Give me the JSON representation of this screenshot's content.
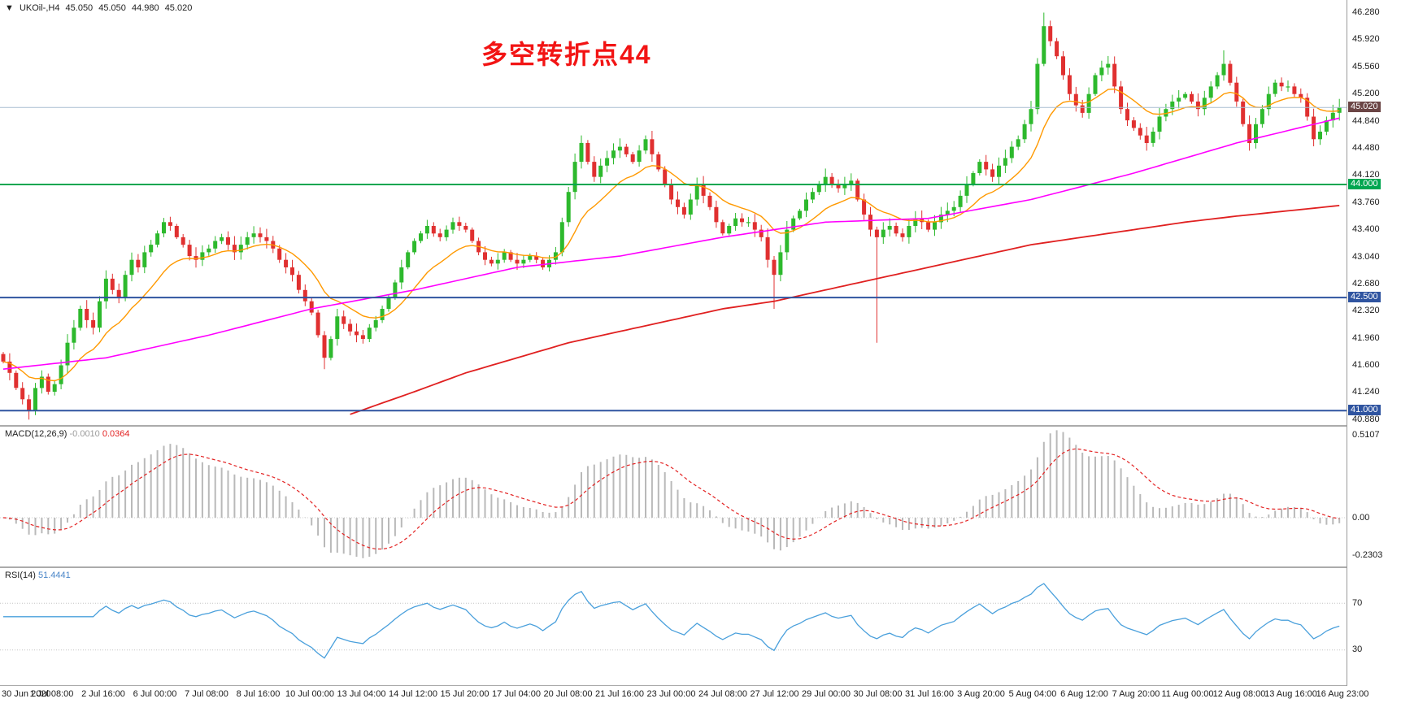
{
  "window": {
    "ohlc_bar": {
      "collapse_icon": "▼",
      "symbol_period": "UKOil-,H4",
      "open": "45.050",
      "high": "45.050",
      "low": "44.980",
      "close": "45.020"
    }
  },
  "annotation": {
    "text": "多空转折点44",
    "color": "#f21414"
  },
  "colors": {
    "background": "#ffffff",
    "bull": "#2db92d",
    "bear": "#e03030",
    "ma_fast": "#ff9900",
    "ma_mid": "#ff00ff",
    "ma_slow": "#e02020",
    "separator": "#ababab",
    "axis_text": "#1a1a1a",
    "macd_hist": "#b9b9b9",
    "macd_signal": "#e32222",
    "rsi_line": "#4aa0dc",
    "rsi_level_line": "#c4c4c4"
  },
  "chart_data": {
    "type": "candlestick",
    "symbol": "UKOil-",
    "timeframe": "H4",
    "bars_count": 209,
    "ylim": [
      40.808,
      46.447
    ],
    "price_ticks": [
      "46.280",
      "45.920",
      "45.560",
      "45.200",
      "44.840",
      "44.480",
      "44.120",
      "43.760",
      "43.400",
      "43.040",
      "42.680",
      "42.320",
      "41.960",
      "41.600",
      "41.240",
      "40.880"
    ],
    "time_labels": [
      "30 Jun 2020",
      "1 Jul 08:00",
      "2 Jul 16:00",
      "6 Jul 00:00",
      "7 Jul 08:00",
      "8 Jul 16:00",
      "10 Jul 00:00",
      "13 Jul 04:00",
      "14 Jul 12:00",
      "15 Jul 20:00",
      "17 Jul 04:00",
      "20 Jul 08:00",
      "21 Jul 16:00",
      "23 Jul 00:00",
      "24 Jul 08:00",
      "27 Jul 12:00",
      "29 Jul 00:00",
      "30 Jul 08:00",
      "31 Jul 16:00",
      "3 Aug 20:00",
      "5 Aug 04:00",
      "6 Aug 12:00",
      "7 Aug 20:00",
      "11 Aug 00:00",
      "12 Aug 08:00",
      "13 Aug 16:00",
      "16 Aug 23:00"
    ],
    "levels": [
      {
        "price": 45.02,
        "label": "45.020",
        "role": "current-price-line",
        "line_color": "#a9bdd1",
        "tag_bg": "#6b4545",
        "width": 1
      },
      {
        "price": 44.0,
        "label": "44.000",
        "role": "horizontal-line",
        "line_color": "#00a650",
        "tag_bg": "#00a650",
        "width": 2
      },
      {
        "price": 42.5,
        "label": "42.500",
        "role": "horizontal-line",
        "line_color": "#2f54a0",
        "tag_bg": "#2f54a0",
        "width": 2
      },
      {
        "price": 41.0,
        "label": "41.000",
        "role": "horizontal-line",
        "line_color": "#2f54a0",
        "tag_bg": "#2f54a0",
        "width": 2
      }
    ],
    "first_open": 41.75,
    "closes": [
      41.65,
      41.5,
      41.3,
      41.15,
      41.0,
      41.3,
      41.45,
      41.25,
      41.35,
      41.6,
      41.9,
      42.1,
      42.35,
      42.2,
      42.1,
      42.45,
      42.75,
      42.6,
      42.5,
      42.8,
      43.0,
      42.9,
      43.1,
      43.2,
      43.35,
      43.5,
      43.45,
      43.3,
      43.2,
      43.05,
      43.0,
      43.1,
      43.15,
      43.25,
      43.3,
      43.2,
      43.1,
      43.2,
      43.3,
      43.35,
      43.3,
      43.25,
      43.15,
      43.0,
      42.9,
      42.8,
      42.6,
      42.45,
      42.3,
      42.0,
      41.7,
      41.95,
      42.25,
      42.15,
      42.05,
      42.0,
      41.95,
      42.1,
      42.2,
      42.35,
      42.5,
      42.7,
      42.9,
      43.1,
      43.25,
      43.35,
      43.45,
      43.35,
      43.3,
      43.4,
      43.5,
      43.45,
      43.4,
      43.25,
      43.1,
      43.0,
      42.95,
      43.0,
      43.1,
      43.0,
      42.95,
      43.0,
      43.05,
      43.0,
      42.9,
      43.0,
      43.1,
      43.5,
      43.9,
      44.3,
      44.55,
      44.3,
      44.1,
      44.25,
      44.35,
      44.45,
      44.5,
      44.4,
      44.3,
      44.45,
      44.6,
      44.4,
      44.2,
      44.0,
      43.8,
      43.7,
      43.6,
      43.8,
      44.0,
      43.85,
      43.7,
      43.5,
      43.35,
      43.45,
      43.55,
      43.5,
      43.5,
      43.4,
      43.3,
      43.0,
      42.8,
      43.1,
      43.4,
      43.55,
      43.65,
      43.8,
      43.9,
      44.0,
      44.1,
      44.0,
      43.95,
      44.0,
      44.05,
      43.8,
      43.6,
      43.4,
      43.3,
      43.4,
      43.45,
      43.35,
      43.3,
      43.45,
      43.55,
      43.5,
      43.4,
      43.5,
      43.6,
      43.65,
      43.7,
      43.85,
      44.0,
      44.15,
      44.3,
      44.2,
      44.1,
      44.25,
      44.35,
      44.5,
      44.6,
      44.8,
      45.0,
      45.6,
      46.1,
      45.9,
      45.7,
      45.45,
      45.2,
      45.05,
      44.95,
      45.2,
      45.45,
      45.55,
      45.6,
      45.3,
      45.0,
      44.85,
      44.75,
      44.65,
      44.55,
      44.7,
      44.9,
      45.0,
      45.1,
      45.15,
      45.2,
      45.1,
      45.0,
      45.15,
      45.3,
      45.45,
      45.6,
      45.35,
      45.1,
      44.8,
      44.55,
      44.8,
      45.0,
      45.2,
      45.35,
      45.3,
      45.3,
      45.2,
      45.15,
      44.9,
      44.6,
      44.7,
      44.85,
      44.95,
      45.02
    ],
    "wick_spikes": {
      "4": {
        "low": 40.88
      },
      "50": {
        "low": 41.55
      },
      "120": {
        "low": 42.35
      },
      "136": {
        "low": 41.9
      },
      "162": {
        "high": 46.28
      },
      "190": {
        "high": 45.78
      }
    },
    "moving_averages": {
      "fast": {
        "type": "ema",
        "period": 13,
        "color": "#ff9900"
      },
      "mid": {
        "color": "#ff00ff",
        "path": [
          [
            0,
            41.55
          ],
          [
            16,
            41.7
          ],
          [
            32,
            42.0
          ],
          [
            48,
            42.35
          ],
          [
            64,
            42.6
          ],
          [
            80,
            42.9
          ],
          [
            96,
            43.05
          ],
          [
            112,
            43.3
          ],
          [
            128,
            43.5
          ],
          [
            144,
            43.55
          ],
          [
            160,
            43.8
          ],
          [
            176,
            44.15
          ],
          [
            192,
            44.55
          ],
          [
            208,
            44.88
          ]
        ]
      },
      "slow": {
        "color": "#e02020",
        "path": [
          [
            54,
            40.95
          ],
          [
            64,
            41.25
          ],
          [
            72,
            41.5
          ],
          [
            80,
            41.7
          ],
          [
            88,
            41.9
          ],
          [
            96,
            42.05
          ],
          [
            104,
            42.2
          ],
          [
            112,
            42.35
          ],
          [
            120,
            42.45
          ],
          [
            128,
            42.6
          ],
          [
            136,
            42.75
          ],
          [
            144,
            42.9
          ],
          [
            152,
            43.05
          ],
          [
            160,
            43.2
          ],
          [
            168,
            43.3
          ],
          [
            176,
            43.4
          ],
          [
            184,
            43.5
          ],
          [
            192,
            43.58
          ],
          [
            200,
            43.65
          ],
          [
            208,
            43.72
          ]
        ]
      }
    },
    "indicators": {
      "macd": {
        "label": "MACD(12,26,9)",
        "value": "-0.0010",
        "signal_value": "0.0364",
        "params": {
          "fast": 12,
          "slow": 26,
          "signal": 9
        },
        "scale_labels": [
          "0.5107",
          "0.00",
          "-0.2303"
        ],
        "scale_top": 0.5107,
        "scale_zero": 0.0,
        "scale_bottom": -0.2303
      },
      "rsi": {
        "label": "RSI(14)",
        "value": "51.4441",
        "period": 14,
        "levels": [
          70,
          30
        ]
      }
    }
  }
}
